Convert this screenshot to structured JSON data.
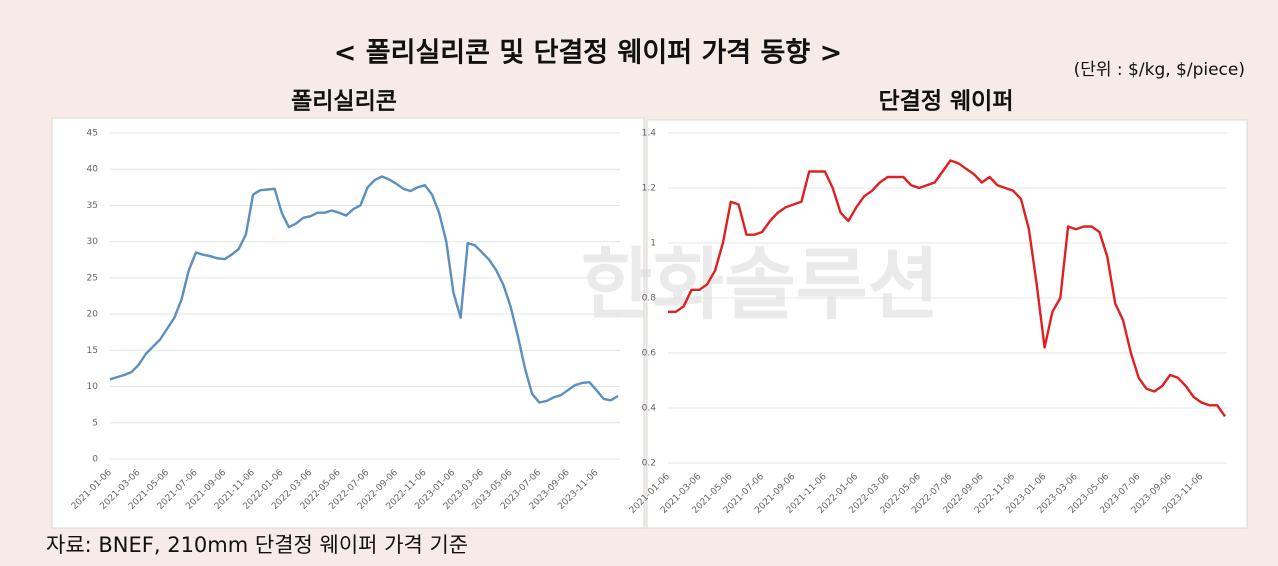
{
  "header": {
    "title": "< 폴리실리콘 및 단결정 웨이퍼 가격 동향 >",
    "unit": "(단위 : $/kg, $/piece)",
    "watermark": "한화솔루션"
  },
  "source": "자료: BNEF, 210mm 단결정 웨이퍼 가격 기준",
  "chart_data": [
    {
      "type": "line",
      "title": "폴리실리콘",
      "color": "#5b8fbf",
      "grid": true,
      "categories": [
        "2021-01-06",
        null,
        null,
        null,
        "2021-03-06",
        null,
        null,
        null,
        "2021-05-06",
        null,
        null,
        null,
        "2021-07-06",
        null,
        null,
        null,
        "2021-09-06",
        null,
        null,
        null,
        "2021-11-06",
        null,
        null,
        null,
        "2022-01-06",
        null,
        null,
        null,
        "2022-03-06",
        null,
        null,
        null,
        "2022-05-06",
        null,
        null,
        null,
        "2022-07-06",
        null,
        null,
        null,
        "2022-09-06",
        null,
        null,
        null,
        "2022-11-06",
        null,
        null,
        null,
        "2023-01-06",
        null,
        null,
        null,
        "2023-03-06",
        null,
        null,
        null,
        "2023-05-06",
        null,
        null,
        null,
        "2023-07-06",
        null,
        null,
        null,
        "2023-09-06",
        null,
        null,
        null,
        "2023-11-06",
        null,
        null,
        null
      ],
      "values": [
        11,
        11.3,
        11.6,
        12,
        13,
        14.5,
        15.5,
        16.5,
        18,
        19.5,
        22,
        26,
        28.5,
        28.2,
        28,
        27.7,
        27.6,
        28.2,
        29,
        31,
        36.5,
        37.1,
        37.2,
        37.3,
        34,
        32,
        32.5,
        33.3,
        33.5,
        34,
        34,
        34.3,
        34,
        33.6,
        34.5,
        35,
        37.5,
        38.5,
        39,
        38.6,
        38,
        37.3,
        37,
        37.5,
        37.8,
        36.5,
        34,
        30,
        23,
        19.5,
        29.8,
        29.5,
        28.5,
        27.5,
        26,
        24,
        21,
        17,
        12.5,
        9,
        7.8,
        8,
        8.5,
        8.8,
        9.5,
        10.2,
        10.5,
        10.6,
        9.5,
        8.3,
        8.1,
        8.7
      ],
      "ylim": [
        0,
        45
      ],
      "yticks": [
        0,
        5,
        10,
        15,
        20,
        25,
        30,
        35,
        40,
        45
      ]
    },
    {
      "type": "line",
      "title": "단결정 웨이퍼",
      "color": "#e02020",
      "grid": true,
      "categories": [
        "2021-01-06",
        null,
        null,
        null,
        "2021-03-06",
        null,
        null,
        null,
        "2021-05-06",
        null,
        null,
        null,
        "2021-07-06",
        null,
        null,
        null,
        "2021-09-06",
        null,
        null,
        null,
        "2021-11-06",
        null,
        null,
        null,
        "2022-01-06",
        null,
        null,
        null,
        "2022-03-06",
        null,
        null,
        null,
        "2022-05-06",
        null,
        null,
        null,
        "2022-07-06",
        null,
        null,
        null,
        "2022-09-06",
        null,
        null,
        null,
        "2022-11-06",
        null,
        null,
        null,
        "2023-01-06",
        null,
        null,
        null,
        "2023-03-06",
        null,
        null,
        null,
        "2023-05-06",
        null,
        null,
        null,
        "2023-07-06",
        null,
        null,
        null,
        "2023-09-06",
        null,
        null,
        null,
        "2023-11-06",
        null,
        null,
        null
      ],
      "values": [
        0.75,
        0.75,
        0.77,
        0.83,
        0.83,
        0.85,
        0.9,
        1.0,
        1.15,
        1.14,
        1.03,
        1.03,
        1.04,
        1.08,
        1.11,
        1.13,
        1.14,
        1.15,
        1.26,
        1.26,
        1.26,
        1.2,
        1.11,
        1.08,
        1.13,
        1.17,
        1.19,
        1.22,
        1.24,
        1.24,
        1.24,
        1.21,
        1.2,
        1.21,
        1.22,
        1.26,
        1.3,
        1.29,
        1.27,
        1.25,
        1.22,
        1.24,
        1.21,
        1.2,
        1.19,
        1.16,
        1.05,
        0.85,
        0.62,
        0.75,
        0.8,
        1.06,
        1.05,
        1.06,
        1.06,
        1.04,
        0.95,
        0.78,
        0.72,
        0.6,
        0.51,
        0.47,
        0.46,
        0.48,
        0.52,
        0.51,
        0.48,
        0.44,
        0.42,
        0.41,
        0.41,
        0.37
      ],
      "ylim": [
        0.2,
        1.4
      ],
      "yticks": [
        0.2,
        0.4,
        0.6,
        0.8,
        1,
        1.2,
        1.4
      ]
    }
  ]
}
